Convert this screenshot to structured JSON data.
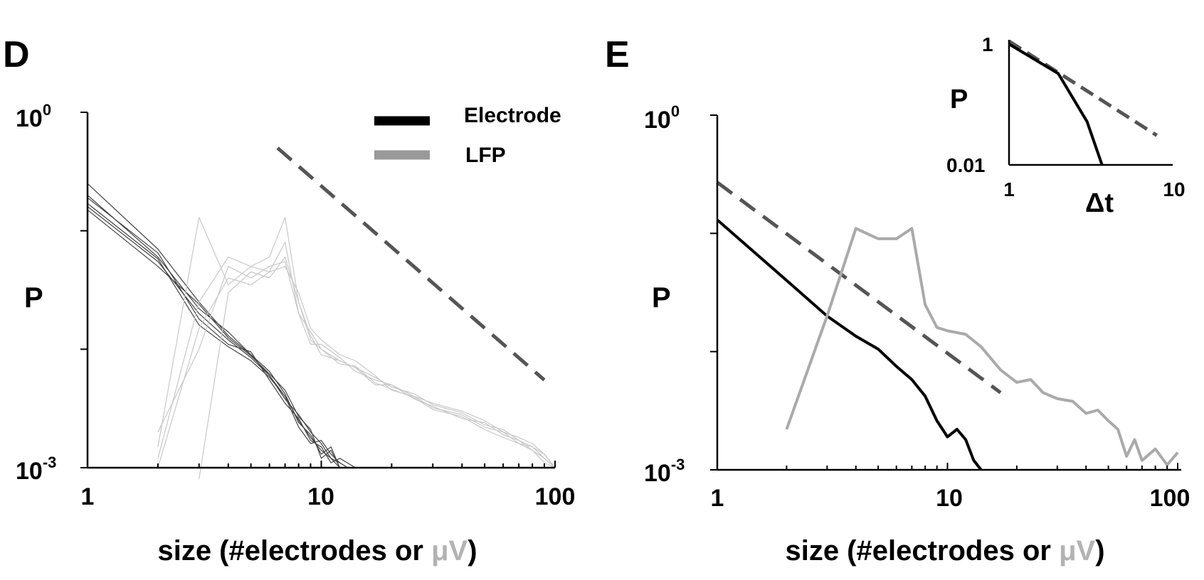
{
  "chart_data": [
    {
      "panel": "D",
      "type": "line",
      "xlabel": "size (#electrodes or ",
      "xlabel_unit": "μV",
      "xlabel_close": ")",
      "ylabel": "P",
      "x_scale": "log",
      "y_scale": "log",
      "xlim": [
        1,
        100
      ],
      "ylim": [
        0.001,
        1
      ],
      "x_ticks": [
        "1",
        "10",
        "100"
      ],
      "y_ticks": [
        {
          "base": "10",
          "exp": "0"
        },
        {
          "base": "10",
          "exp": "-3"
        }
      ],
      "legend": [
        {
          "label": "Electrode",
          "color": "#000000"
        },
        {
          "label": "LFP",
          "color": "#999999"
        }
      ],
      "series": [
        {
          "group": "Electrode",
          "color": "#444444",
          "x": [
            1,
            2,
            3,
            4,
            5,
            6,
            7,
            8,
            9,
            10,
            11,
            12,
            13
          ],
          "y": [
            0.25,
            0.07,
            0.025,
            0.013,
            0.009,
            0.006,
            0.004,
            0.0025,
            0.0018,
            0.0014,
            0.0012,
            0.001,
            0.001
          ]
        },
        {
          "group": "Electrode",
          "color": "#444444",
          "x": [
            1,
            2,
            3,
            4,
            5,
            6,
            7,
            8,
            9,
            10,
            11,
            12,
            13
          ],
          "y": [
            0.16,
            0.055,
            0.02,
            0.012,
            0.0085,
            0.006,
            0.0038,
            0.0028,
            0.002,
            0.0016,
            0.0012,
            0.0011,
            0.001
          ]
        },
        {
          "group": "Electrode",
          "color": "#444444",
          "x": [
            1,
            2,
            3,
            4,
            5,
            6,
            7,
            8,
            9,
            10,
            11,
            12
          ],
          "y": [
            0.2,
            0.06,
            0.022,
            0.014,
            0.009,
            0.0065,
            0.0042,
            0.0024,
            0.0019,
            0.0013,
            0.0015,
            0.001
          ]
        },
        {
          "group": "Electrode",
          "color": "#444444",
          "x": [
            1,
            2,
            3,
            4,
            5,
            6,
            7,
            8,
            9,
            10,
            11,
            12,
            14
          ],
          "y": [
            0.19,
            0.065,
            0.018,
            0.011,
            0.0095,
            0.0055,
            0.0035,
            0.0026,
            0.0017,
            0.0015,
            0.0011,
            0.0012,
            0.001
          ]
        },
        {
          "group": "Electrode",
          "color": "#444444",
          "x": [
            1,
            2,
            3,
            4,
            5,
            6,
            7,
            8,
            9,
            10,
            11,
            12,
            13
          ],
          "y": [
            0.15,
            0.05,
            0.024,
            0.0125,
            0.0088,
            0.0062,
            0.0045,
            0.0027,
            0.0021,
            0.0012,
            0.0014,
            0.001,
            0.001
          ]
        },
        {
          "group": "Electrode",
          "color": "#444444",
          "x": [
            1,
            2,
            3,
            4,
            5,
            6,
            7,
            8,
            9,
            10,
            11,
            12,
            13
          ],
          "y": [
            0.17,
            0.058,
            0.016,
            0.0105,
            0.008,
            0.0058,
            0.004,
            0.0022,
            0.0016,
            0.0017,
            0.0013,
            0.0011,
            0.001
          ]
        },
        {
          "group": "LFP",
          "color": "#c8c8c8",
          "x": [
            2,
            3,
            4,
            5,
            6,
            7,
            8,
            9,
            10,
            12,
            14,
            17,
            20,
            25,
            30,
            40,
            50,
            60,
            70,
            80,
            90,
            100
          ],
          "y": [
            0.0012,
            0.025,
            0.06,
            0.05,
            0.06,
            0.13,
            0.025,
            0.012,
            0.01,
            0.008,
            0.007,
            0.005,
            0.005,
            0.004,
            0.0035,
            0.003,
            0.0025,
            0.002,
            0.0018,
            0.0016,
            0.0013,
            0.001
          ]
        },
        {
          "group": "LFP",
          "color": "#c8c8c8",
          "x": [
            2,
            3,
            4,
            5,
            6,
            7,
            8,
            9,
            10,
            12,
            14,
            17,
            20,
            25,
            30,
            40,
            50,
            60,
            70,
            80,
            90,
            100
          ],
          "y": [
            0.001,
            0.015,
            0.04,
            0.035,
            0.045,
            0.05,
            0.03,
            0.015,
            0.012,
            0.009,
            0.008,
            0.006,
            0.0045,
            0.004,
            0.0032,
            0.0028,
            0.0022,
            0.002,
            0.0016,
            0.0015,
            0.0012,
            0.001
          ]
        },
        {
          "group": "LFP",
          "color": "#c8c8c8",
          "x": [
            2,
            3,
            4,
            5,
            6,
            7,
            8,
            9,
            10,
            12,
            14,
            17,
            20,
            25,
            30,
            40,
            50,
            60,
            70,
            80,
            90,
            100
          ],
          "y": [
            0.0015,
            0.13,
            0.035,
            0.05,
            0.045,
            0.08,
            0.02,
            0.011,
            0.011,
            0.0085,
            0.0065,
            0.0055,
            0.005,
            0.0038,
            0.0033,
            0.0026,
            0.0024,
            0.0019,
            0.0017,
            0.0014,
            0.0012,
            0.001
          ]
        },
        {
          "group": "LFP",
          "color": "#c8c8c8",
          "x": [
            3,
            4,
            5,
            6,
            7,
            8,
            9,
            10,
            12,
            14,
            17,
            20,
            25,
            30,
            40,
            50,
            60,
            70,
            80,
            90,
            100
          ],
          "y": [
            0.0008,
            0.03,
            0.045,
            0.04,
            0.06,
            0.025,
            0.013,
            0.009,
            0.008,
            0.007,
            0.0058,
            0.0048,
            0.0042,
            0.0034,
            0.0029,
            0.0023,
            0.0021,
            0.0017,
            0.0015,
            0.0013,
            0.001
          ]
        },
        {
          "group": "LFP",
          "color": "#c8c8c8",
          "x": [
            2,
            3,
            4,
            5,
            6,
            7,
            8,
            9,
            10,
            12,
            14,
            17,
            20,
            25,
            30,
            40,
            50,
            60,
            70,
            80,
            90,
            100
          ],
          "y": [
            0.002,
            0.01,
            0.05,
            0.04,
            0.05,
            0.055,
            0.02,
            0.014,
            0.01,
            0.0075,
            0.0072,
            0.0052,
            0.0046,
            0.0039,
            0.0031,
            0.0027,
            0.0021,
            0.0018,
            0.0016,
            0.0014,
            0.0011,
            0.001
          ]
        }
      ],
      "reference_line": {
        "style": "dashed",
        "color": "#555555",
        "x": [
          6.5,
          90
        ],
        "y": [
          0.5,
          0.0055
        ]
      }
    },
    {
      "panel": "E",
      "type": "line",
      "xlabel": "size (#electrodes or ",
      "xlabel_unit": "μV",
      "xlabel_close": ")",
      "ylabel": "P",
      "x_scale": "log",
      "y_scale": "log",
      "xlim": [
        1,
        100
      ],
      "ylim": [
        0.001,
        1
      ],
      "x_ticks": [
        "1",
        "10",
        "100"
      ],
      "y_ticks": [
        {
          "base": "10",
          "exp": "0"
        },
        {
          "base": "10",
          "exp": "-3"
        }
      ],
      "series": [
        {
          "group": "Electrode",
          "color": "#000000",
          "x": [
            1,
            2,
            3,
            4,
            5,
            6,
            7,
            8,
            9,
            10,
            11,
            12,
            13,
            14
          ],
          "y": [
            0.13,
            0.04,
            0.02,
            0.0135,
            0.0105,
            0.0075,
            0.0058,
            0.0042,
            0.0026,
            0.0019,
            0.0022,
            0.0018,
            0.0012,
            0.001
          ]
        },
        {
          "group": "LFP",
          "color": "#aaaaaa",
          "x": [
            2,
            3,
            4,
            5,
            6,
            7,
            8,
            9,
            10,
            12,
            14,
            17,
            20,
            23,
            26,
            30,
            35,
            40,
            45,
            50,
            55,
            60,
            65,
            70,
            80,
            90,
            100
          ],
          "y": [
            0.0022,
            0.02,
            0.11,
            0.09,
            0.09,
            0.11,
            0.025,
            0.016,
            0.015,
            0.014,
            0.011,
            0.007,
            0.0055,
            0.0058,
            0.0045,
            0.004,
            0.0038,
            0.003,
            0.0032,
            0.0026,
            0.0022,
            0.0013,
            0.0018,
            0.0012,
            0.0015,
            0.0011,
            0.0014
          ]
        }
      ],
      "reference_line": {
        "style": "dashed",
        "color": "#555555",
        "x": [
          1,
          17
        ],
        "y": [
          0.27,
          0.0045
        ]
      },
      "inset": {
        "type": "line",
        "xlabel": "Δt",
        "ylabel": "P",
        "x_scale": "log",
        "y_scale": "log",
        "xlim": [
          1,
          10
        ],
        "ylim": [
          0.01,
          1
        ],
        "x_ticks": [
          "1",
          "10"
        ],
        "y_ticks": [
          "1",
          "0.01"
        ],
        "series": [
          {
            "color": "#000000",
            "x": [
              1,
              2,
              3,
              3.7
            ],
            "y": [
              0.9,
              0.3,
              0.05,
              0.01
            ]
          }
        ],
        "reference_line": {
          "style": "dashed",
          "color": "#555555",
          "x": [
            1,
            8
          ],
          "y": [
            1,
            0.03
          ]
        }
      }
    }
  ],
  "panels": {
    "d": {
      "letter": "D"
    },
    "e": {
      "letter": "E"
    }
  }
}
